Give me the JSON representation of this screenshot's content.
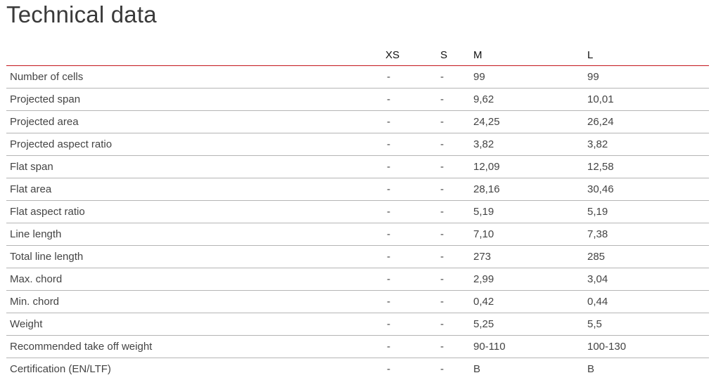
{
  "title": "Technical data",
  "columns": [
    "",
    "XS",
    "S",
    "M",
    "L"
  ],
  "rows": [
    {
      "label": "Number of cells",
      "values": [
        "-",
        "-",
        "99",
        "99"
      ]
    },
    {
      "label": "Projected span",
      "values": [
        "-",
        "-",
        "9,62",
        "10,01"
      ]
    },
    {
      "label": "Projected area",
      "values": [
        "-",
        "-",
        "24,25",
        "26,24"
      ]
    },
    {
      "label": "Projected aspect ratio",
      "values": [
        "-",
        "-",
        "3,82",
        "3,82"
      ]
    },
    {
      "label": "Flat span",
      "values": [
        "-",
        "-",
        "12,09",
        "12,58"
      ]
    },
    {
      "label": "Flat area",
      "values": [
        "-",
        "-",
        "28,16",
        "30,46"
      ]
    },
    {
      "label": "Flat aspect ratio",
      "values": [
        "-",
        "-",
        "5,19",
        "5,19"
      ]
    },
    {
      "label": "Line length",
      "values": [
        "-",
        "-",
        "7,10",
        "7,38"
      ]
    },
    {
      "label": "Total line length",
      "values": [
        "-",
        "-",
        "273",
        "285"
      ]
    },
    {
      "label": "Max. chord",
      "values": [
        "-",
        "-",
        "2,99",
        "3,04"
      ]
    },
    {
      "label": "Min. chord",
      "values": [
        "-",
        "-",
        "0,42",
        "0,44"
      ]
    },
    {
      "label": "Weight",
      "values": [
        "-",
        "-",
        "5,25",
        "5,5"
      ]
    },
    {
      "label": "Recommended take off weight",
      "values": [
        "-",
        "-",
        "90-110",
        "100-130"
      ]
    },
    {
      "label": "Certification (EN/LTF)",
      "values": [
        "-",
        "-",
        "B",
        "B"
      ]
    }
  ],
  "colors": {
    "header_rule": "#c4161c",
    "row_rule": "#b5b5b5"
  }
}
